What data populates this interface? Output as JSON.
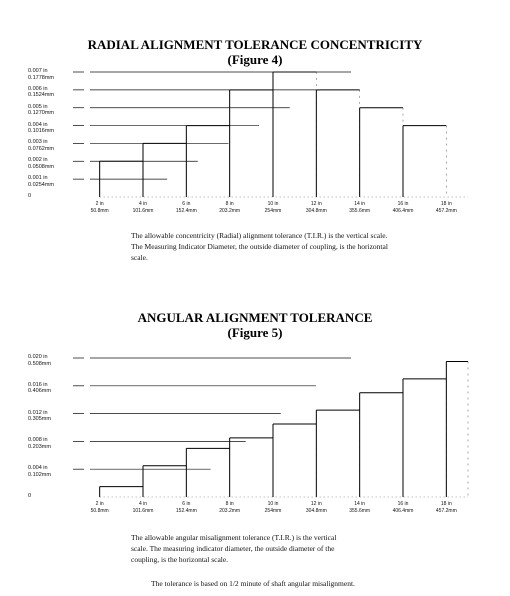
{
  "chart_data": [
    {
      "type": "line",
      "title": "RADIAL ALIGNMENT TOLERANCE CONCENTRICITY",
      "subtitle": "(Figure 4)",
      "yticks": [
        {
          "value": 0.007,
          "label": "0.007 in\n0.1778mm"
        },
        {
          "value": 0.006,
          "label": "0.006 in\n0.1524mm"
        },
        {
          "value": 0.005,
          "label": "0.005 in\n0.1270mm"
        },
        {
          "value": 0.004,
          "label": "0.004 in\n0.1016mm"
        },
        {
          "value": 0.003,
          "label": "0.003 in\n0.0762mm"
        },
        {
          "value": 0.002,
          "label": "0.002 in\n0.0508mm"
        },
        {
          "value": 0.001,
          "label": "0.001 in\n0.0254mm"
        },
        {
          "value": 0,
          "label": "0"
        }
      ],
      "xticks": [
        {
          "value": 2,
          "label": "2 in\n50.8mm"
        },
        {
          "value": 4,
          "label": "4 in\n101.6mm"
        },
        {
          "value": 6,
          "label": "6 in\n152.4mm"
        },
        {
          "value": 8,
          "label": "8 in\n203.2mm"
        },
        {
          "value": 10,
          "label": "10 in\n254mm"
        },
        {
          "value": 12,
          "label": "12 in\n304.8mm"
        },
        {
          "value": 14,
          "label": "14 in\n355.6mm"
        },
        {
          "value": 16,
          "label": "16 in\n406.4mm"
        },
        {
          "value": 18,
          "label": "18 in\n457.2mm"
        }
      ],
      "xlim": [
        1,
        19
      ],
      "ylim": [
        0,
        0.007
      ],
      "steps": [
        {
          "x_start": 2,
          "x_end": 4,
          "y": 0.002
        },
        {
          "x_start": 4,
          "x_end": 6,
          "y": 0.003
        },
        {
          "x_start": 6,
          "x_end": 8,
          "y": 0.004
        },
        {
          "x_start": 8,
          "x_end": 10,
          "y": 0.006
        },
        {
          "x_start": 10,
          "x_end": 12,
          "y": 0.007
        },
        {
          "x_start": 12,
          "x_end": 14,
          "y": 0.006
        },
        {
          "x_start": 14,
          "x_end": 16,
          "y": 0.005
        },
        {
          "x_start": 16,
          "x_end": 18,
          "y": 0.004
        }
      ],
      "caption_lines": [
        "The allowable concentricity (Radial) alignment tolerance (T.I.R.) is the vertical scale.",
        "The Measuring Indicator Diameter, the outside diameter of coupling, is the horizontal",
        "scale."
      ]
    },
    {
      "type": "line",
      "title": "ANGULAR ALIGNMENT TOLERANCE",
      "subtitle": "(Figure 5)",
      "yticks": [
        {
          "value": 0.02,
          "label": "0.020 in\n0.508mm"
        },
        {
          "value": 0.016,
          "label": "0.016 in\n0.406mm"
        },
        {
          "value": 0.012,
          "label": "0.012 in\n0.305mm"
        },
        {
          "value": 0.008,
          "label": "0.008 in\n0.203mm"
        },
        {
          "value": 0.004,
          "label": "0.004 in\n0.102mm"
        },
        {
          "value": 0,
          "label": "0"
        }
      ],
      "xticks": [
        {
          "value": 2,
          "label": "2 in\n50.8mm"
        },
        {
          "value": 4,
          "label": "4 in\n101.6mm"
        },
        {
          "value": 6,
          "label": "6 in\n152.4mm"
        },
        {
          "value": 8,
          "label": "8 in\n203.2mm"
        },
        {
          "value": 10,
          "label": "10 in\n254mm"
        },
        {
          "value": 12,
          "label": "12 in\n304.8mm"
        },
        {
          "value": 14,
          "label": "14 in\n355.6mm"
        },
        {
          "value": 16,
          "label": "16 in\n406.4mm"
        },
        {
          "value": 18,
          "label": "18 in\n457.2mm"
        }
      ],
      "xlim": [
        1,
        19
      ],
      "ylim": [
        0,
        0.02
      ],
      "steps": [
        {
          "x_start": 2,
          "x_end": 4,
          "y": 0.0015
        },
        {
          "x_start": 4,
          "x_end": 6,
          "y": 0.0045
        },
        {
          "x_start": 6,
          "x_end": 8,
          "y": 0.007
        },
        {
          "x_start": 8,
          "x_end": 10,
          "y": 0.0085
        },
        {
          "x_start": 10,
          "x_end": 12,
          "y": 0.0105
        },
        {
          "x_start": 12,
          "x_end": 14,
          "y": 0.0125
        },
        {
          "x_start": 14,
          "x_end": 16,
          "y": 0.015
        },
        {
          "x_start": 16,
          "x_end": 18,
          "y": 0.017
        },
        {
          "x_start": 18,
          "x_end": 19,
          "y": 0.0195
        }
      ],
      "caption_lines": [
        "The allowable angular misalignment tolerance (T.I.R.) is the vertical",
        "scale.  The measuring indicator diameter, the outside diameter of the",
        "coupling, is the horizontal scale."
      ],
      "note": "The tolerance is based on 1/2 minute of shaft angular misalignment."
    }
  ]
}
